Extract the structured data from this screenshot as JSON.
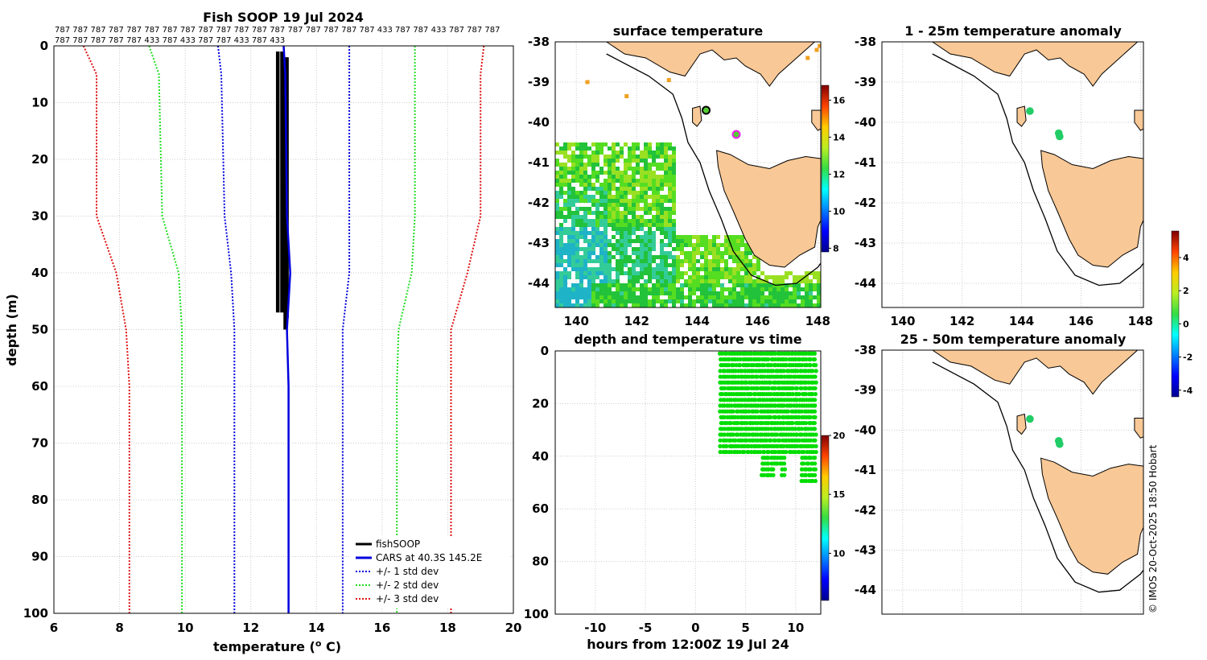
{
  "colors": {
    "profile": "#000000",
    "cars": "#0000dd",
    "sd1": "#0000dd",
    "sd2": "#22dd22",
    "sd3": "#dd1111",
    "land": "#f8c896",
    "scatter": "#00dd00",
    "grid": "#cccccc"
  },
  "chart_data": [
    {
      "id": "profile",
      "type": "line",
      "title": "Fish SOOP 19 Jul 2024",
      "xlabel": "temperature (",
      "xlabel_sup": "o",
      "xlabel_end": " C)",
      "ylabel": "depth (m)",
      "xlim": [
        6,
        20
      ],
      "ylim": [
        0,
        100
      ],
      "xticks": [
        6,
        8,
        10,
        12,
        14,
        16,
        18,
        20
      ],
      "yticks": [
        0,
        10,
        20,
        30,
        40,
        50,
        60,
        70,
        80,
        90,
        100
      ],
      "header_line1": "787 787 787 787 787 787 787 787 787 787 787 787 787 787 787 787 787 787 433 787 787 433 787 787 787",
      "header_line2": "787 787 787 787 787 433 787 433 787 787 433 787 433",
      "legend": [
        "fishSOOP",
        "CARS at 40.3S 145.2E",
        "+/- 1 std dev",
        "+/- 2 std dev",
        "+/- 3 std dev"
      ],
      "series": [
        {
          "name": "fishSOOP (cast 1)",
          "depth": [
            1,
            47
          ],
          "temp": [
            12.82,
            12.82
          ]
        },
        {
          "name": "fishSOOP (cast 2)",
          "depth": [
            1,
            47
          ],
          "temp": [
            12.95,
            12.95
          ]
        },
        {
          "name": "fishSOOP (cast 3)",
          "depth": [
            3,
            50
          ],
          "temp": [
            13.05,
            13.05
          ]
        },
        {
          "name": "fishSOOP (cast 4)",
          "depth": [
            2,
            48
          ],
          "temp": [
            13.1,
            13.1
          ]
        },
        {
          "name": "CARS",
          "depth": [
            0,
            5,
            30,
            40,
            50,
            60,
            100
          ],
          "temp": [
            13.0,
            13.05,
            13.1,
            13.2,
            13.1,
            13.15,
            13.15
          ]
        },
        {
          "name": "+1 std",
          "depth": [
            0,
            5,
            30,
            40,
            50,
            60,
            100
          ],
          "temp": [
            15.0,
            15.0,
            15.0,
            15.0,
            14.8,
            14.8,
            14.8
          ]
        },
        {
          "name": "-1 std",
          "depth": [
            0,
            5,
            30,
            40,
            50,
            60,
            100
          ],
          "temp": [
            11.0,
            11.1,
            11.2,
            11.4,
            11.5,
            11.5,
            11.5
          ]
        },
        {
          "name": "+2 std",
          "depth": [
            0,
            5,
            30,
            40,
            50,
            60,
            100
          ],
          "temp": [
            17.0,
            17.0,
            17.0,
            16.9,
            16.5,
            16.45,
            16.45
          ]
        },
        {
          "name": "-2 std",
          "depth": [
            0,
            5,
            30,
            40,
            50,
            60,
            100
          ],
          "temp": [
            8.9,
            9.2,
            9.3,
            9.8,
            9.9,
            9.9,
            9.9
          ]
        },
        {
          "name": "+3 std",
          "depth": [
            0,
            5,
            30,
            40,
            50,
            60,
            100
          ],
          "temp": [
            19.1,
            19.0,
            19.0,
            18.6,
            18.1,
            18.1,
            18.1
          ]
        },
        {
          "name": "-3 std",
          "depth": [
            0,
            5,
            30,
            40,
            50,
            60,
            100
          ],
          "temp": [
            6.9,
            7.3,
            7.3,
            7.9,
            8.2,
            8.3,
            8.3
          ]
        }
      ]
    },
    {
      "id": "sst",
      "type": "heatmap",
      "title": "surface temperature",
      "xlim": [
        139.3,
        148.1
      ],
      "ylim": [
        -44.6,
        -38
      ],
      "xticks": [
        140,
        142,
        144,
        146,
        148
      ],
      "yticks": [
        -38,
        -39,
        -40,
        -41,
        -42,
        -43,
        -44
      ],
      "colorbar": {
        "min": 7.8,
        "max": 16.8,
        "ticks": [
          8,
          10,
          12,
          14,
          16
        ]
      },
      "markers": [
        {
          "lon": 144.3,
          "lat": -39.7
        },
        {
          "lon": 145.3,
          "lat": -40.3
        }
      ]
    },
    {
      "id": "dtime",
      "type": "scatter",
      "title": "depth and temperature vs time",
      "xlabel": "hours from 12:00Z 19 Jul 24",
      "xlim": [
        -14,
        12.5
      ],
      "ylim": [
        0,
        100
      ],
      "xticks": [
        -10,
        -5,
        0,
        5,
        10
      ],
      "yticks": [
        0,
        20,
        40,
        60,
        80,
        100
      ],
      "x_range_data": [
        2.5,
        12
      ],
      "depth_range_data": [
        1,
        50
      ],
      "colorbar": {
        "min": 6,
        "max": 20,
        "ticks": [
          10,
          15,
          20
        ]
      }
    },
    {
      "id": "anom1",
      "type": "scatter",
      "title": "1 - 25m temperature anomaly",
      "xlim": [
        139.3,
        148.1
      ],
      "ylim": [
        -44.6,
        -38
      ],
      "xticks": [
        140,
        142,
        144,
        146,
        148
      ],
      "yticks": [
        -38,
        -39,
        -40,
        -41,
        -42,
        -43,
        -44
      ],
      "points": [
        {
          "lon": 144.28,
          "lat": -39.72
        },
        {
          "lon": 145.25,
          "lat": -40.27
        },
        {
          "lon": 145.28,
          "lat": -40.35
        }
      ],
      "colorbar": {
        "min": -4.4,
        "max": 5.6,
        "ticks": [
          -4,
          -2,
          0,
          2,
          4
        ]
      }
    },
    {
      "id": "anom2",
      "type": "scatter",
      "title": "25 - 50m temperature anomaly",
      "xlim": [
        139.3,
        148.1
      ],
      "ylim": [
        -44.6,
        -38
      ],
      "xticks": [
        140,
        142,
        144,
        146,
        148
      ],
      "yticks": [
        -38,
        -39,
        -40,
        -41,
        -42,
        -43,
        -44
      ],
      "points": [
        {
          "lon": 144.28,
          "lat": -39.72
        },
        {
          "lon": 145.25,
          "lat": -40.27
        },
        {
          "lon": 145.28,
          "lat": -40.35
        }
      ]
    }
  ],
  "credit": "© IMOS 20-Oct-2025 18:50 Hobart"
}
